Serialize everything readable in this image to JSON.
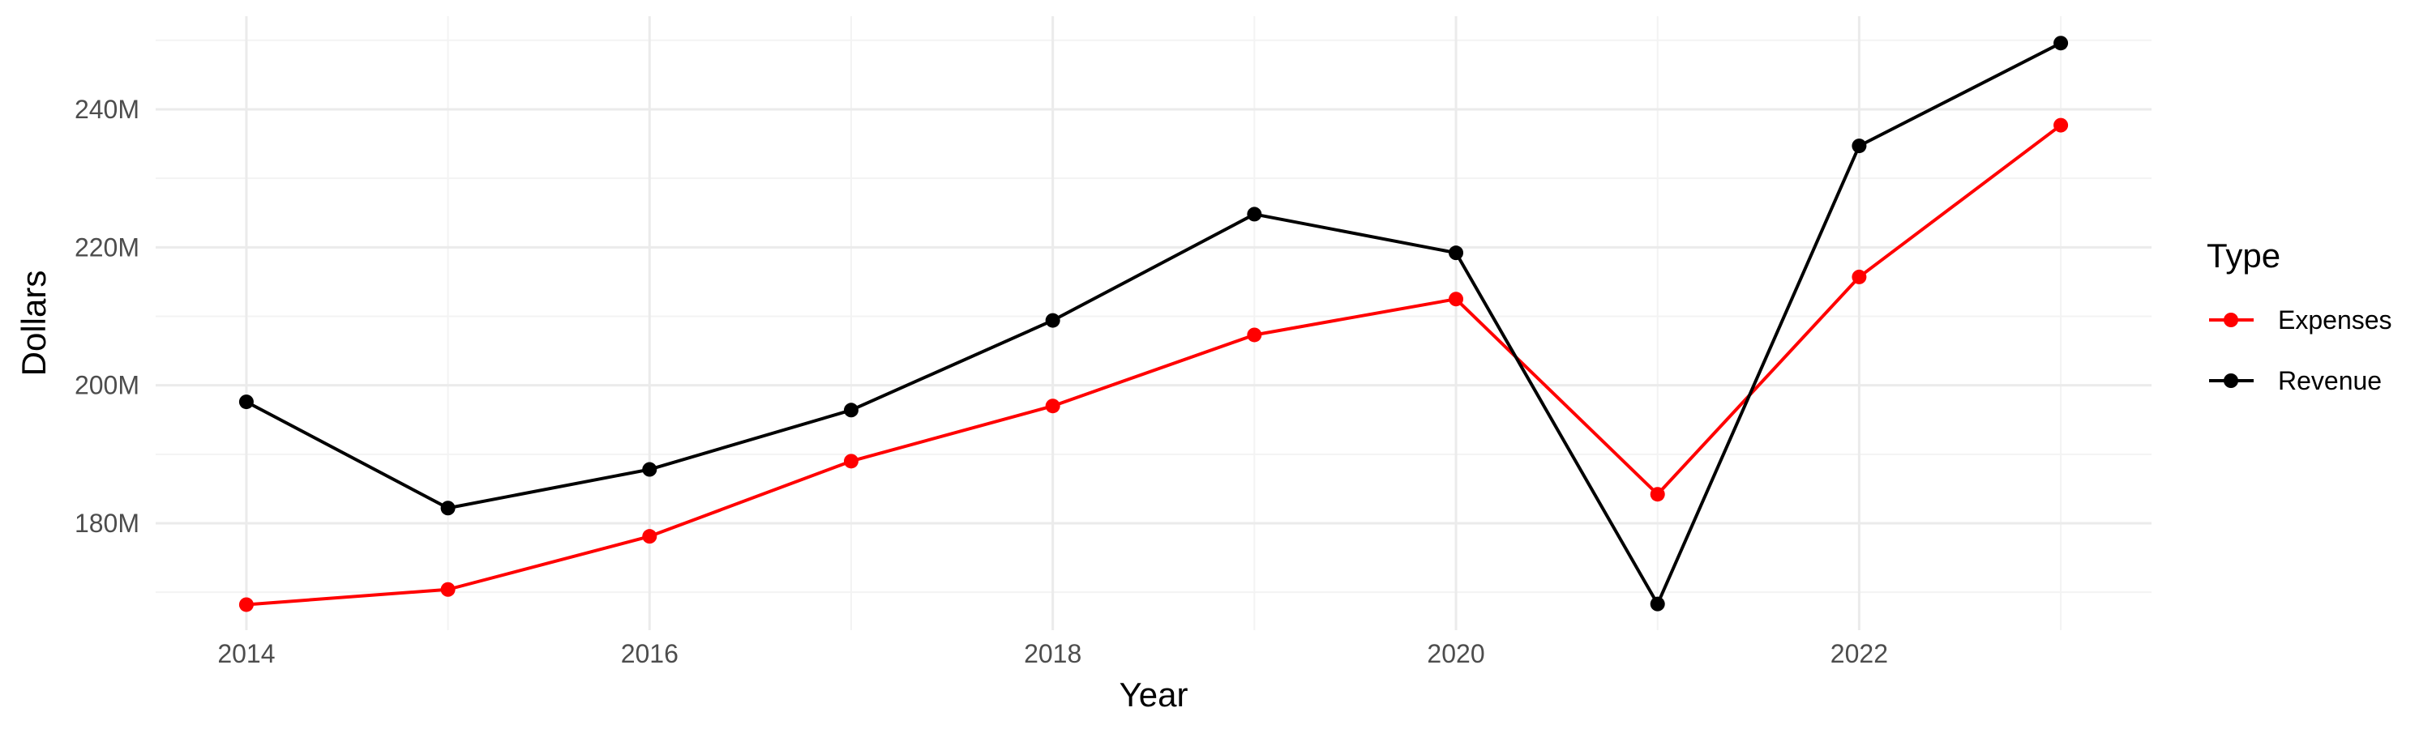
{
  "chart_data": {
    "type": "line",
    "title": "",
    "xlabel": "Year",
    "ylabel": "Dollars",
    "x": [
      2014,
      2015,
      2016,
      2017,
      2018,
      2019,
      2020,
      2021,
      2022,
      2023
    ],
    "x_ticks": [
      2014,
      2016,
      2018,
      2020,
      2022
    ],
    "x_tick_labels": [
      "2014",
      "2016",
      "2018",
      "2020",
      "2022"
    ],
    "xlim": [
      2013.55,
      2023.45
    ],
    "ylim": [
      164.5,
      253.5
    ],
    "y_ticks": [
      180,
      200,
      220,
      240
    ],
    "y_tick_labels": [
      "180M",
      "200M",
      "220M",
      "240M"
    ],
    "grid": true,
    "legend": {
      "title": "Type",
      "placement": "right"
    },
    "series": [
      {
        "name": "Expenses",
        "color": "#ff0000",
        "values": [
          168.2,
          170.4,
          178.1,
          189.0,
          197.0,
          207.3,
          212.5,
          184.2,
          215.7,
          237.7
        ]
      },
      {
        "name": "Revenue",
        "color": "#000000",
        "values": [
          197.6,
          182.2,
          187.8,
          196.4,
          209.4,
          224.8,
          219.2,
          168.3,
          234.7,
          249.6
        ]
      }
    ]
  }
}
